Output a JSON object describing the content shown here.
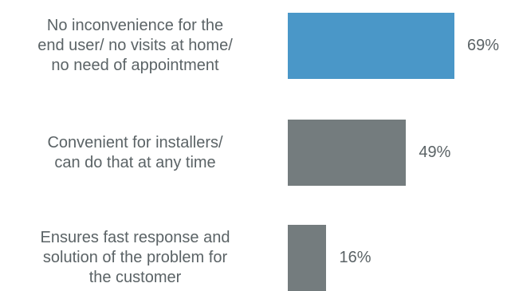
{
  "chart_data": {
    "type": "bar",
    "orientation": "horizontal",
    "categories": [
      "No inconvenience for the end user/ no visits at home/ no need of appointment",
      "Convenient for installers/ can do that at any time",
      "Ensures fast response and solution of the problem for the customer"
    ],
    "category_lines": [
      [
        "No inconvenience for the",
        "end user/ no visits at home/",
        "no need of appointment"
      ],
      [
        "Convenient for installers/",
        "can do that at any time"
      ],
      [
        "Ensures fast response and",
        "solution of the problem for",
        "the customer"
      ]
    ],
    "values": [
      69,
      49,
      16
    ],
    "value_labels": [
      "69%",
      "49%",
      "16%"
    ],
    "bar_colors": [
      "#4a97c8",
      "#747c7e",
      "#747c7e"
    ],
    "xlim": [
      0,
      100
    ],
    "grid": false,
    "legend": "none",
    "title": "",
    "xlabel": "",
    "ylabel": ""
  }
}
